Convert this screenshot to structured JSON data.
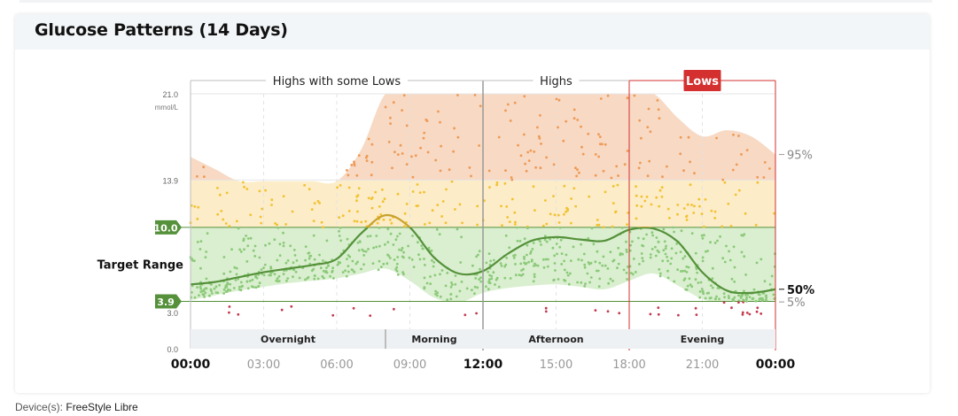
{
  "card": {
    "title": "Glucose Patterns (14 Days)"
  },
  "footer": {
    "devices_label": "Device(s):",
    "devices_value": "FreeStyle Libre"
  },
  "colors": {
    "high_band": "#f7d9c4",
    "above_target_band": "#fcecc8",
    "target_band": "#d9efcf",
    "high_dot": "#ef9a55",
    "above_dot": "#f2c230",
    "target_dot": "#8cc97a",
    "low_dot": "#c33a4e",
    "median_green": "#55913a",
    "median_gold": "#c8a12e",
    "lows_accent": "#d3302f"
  },
  "chart_data": {
    "type": "scatter",
    "title": "Glucose Patterns (14 Days)",
    "y_unit": "mmol/L",
    "y_range": [
      0.0,
      21.0
    ],
    "y_ticks": [
      "21.0",
      "13.9",
      "10.0",
      "3.9",
      "3.0",
      "0.0"
    ],
    "x_range": [
      0,
      24
    ],
    "x_ticks": [
      {
        "label": "00:00",
        "emphasis": true
      },
      {
        "label": "03:00",
        "emphasis": false
      },
      {
        "label": "06:00",
        "emphasis": false
      },
      {
        "label": "09:00",
        "emphasis": false
      },
      {
        "label": "12:00",
        "emphasis": true
      },
      {
        "label": "15:00",
        "emphasis": false
      },
      {
        "label": "18:00",
        "emphasis": false
      },
      {
        "label": "21:00",
        "emphasis": false
      },
      {
        "label": "00:00",
        "emphasis": true
      }
    ],
    "target_range": {
      "label": "Target Range",
      "low": 3.9,
      "high": 10.0,
      "low_label": "3.9",
      "high_label": "10.0"
    },
    "pattern_labels": [
      {
        "label": "Highs with some Lows",
        "start_hour": 0,
        "end_hour": 12,
        "alert": false
      },
      {
        "label": "Highs",
        "start_hour": 12,
        "end_hour": 18,
        "alert": false
      },
      {
        "label": "Lows",
        "start_hour": 18,
        "end_hour": 24,
        "alert": true
      }
    ],
    "periods": [
      {
        "label": "Overnight",
        "start_hour": 0,
        "end_hour": 8
      },
      {
        "label": "Morning",
        "start_hour": 8,
        "end_hour": 12
      },
      {
        "label": "Afternoon",
        "start_hour": 12,
        "end_hour": 18
      },
      {
        "label": "Evening",
        "start_hour": 18,
        "end_hour": 24
      }
    ],
    "percentile_labels": [
      "95%",
      "50%",
      "5%"
    ],
    "series": [
      {
        "name": "50%",
        "hours": [
          0,
          1,
          2,
          3,
          4,
          5,
          6,
          7,
          8,
          9,
          10,
          11,
          12,
          13,
          14,
          15,
          16,
          17,
          18,
          19,
          20,
          21,
          22,
          23,
          24
        ],
        "values": [
          5.3,
          5.5,
          5.9,
          6.3,
          6.6,
          6.9,
          7.4,
          9.5,
          11.0,
          10.0,
          7.5,
          6.2,
          6.4,
          7.8,
          8.9,
          9.2,
          9.0,
          8.9,
          9.8,
          9.9,
          8.8,
          6.3,
          4.8,
          4.6,
          4.9
        ]
      },
      {
        "name": "95%",
        "hours": [
          0,
          1,
          2,
          3,
          4,
          5,
          6,
          7,
          8,
          9,
          10,
          11,
          12,
          13,
          14,
          15,
          16,
          17,
          18,
          19,
          20,
          21,
          22,
          23,
          24
        ],
        "values": [
          15.8,
          14.8,
          13.8,
          13.8,
          13.8,
          13.8,
          13.8,
          16.4,
          21.0,
          21.0,
          21.0,
          21.0,
          21.0,
          21.0,
          21.0,
          21.0,
          21.0,
          21.0,
          21.0,
          21.0,
          19.0,
          17.5,
          18.0,
          17.5,
          16.0
        ]
      },
      {
        "name": "5%",
        "hours": [
          0,
          1,
          2,
          3,
          4,
          5,
          6,
          7,
          8,
          9,
          10,
          11,
          12,
          13,
          14,
          15,
          16,
          17,
          18,
          19,
          20,
          21,
          22,
          23,
          24
        ],
        "values": [
          4.0,
          4.4,
          4.8,
          5.1,
          5.4,
          5.6,
          5.8,
          6.2,
          6.6,
          5.6,
          4.2,
          3.8,
          4.6,
          5.0,
          5.2,
          5.3,
          5.1,
          4.9,
          5.6,
          6.2,
          5.2,
          4.1,
          3.7,
          3.8,
          4.0
        ]
      }
    ]
  }
}
